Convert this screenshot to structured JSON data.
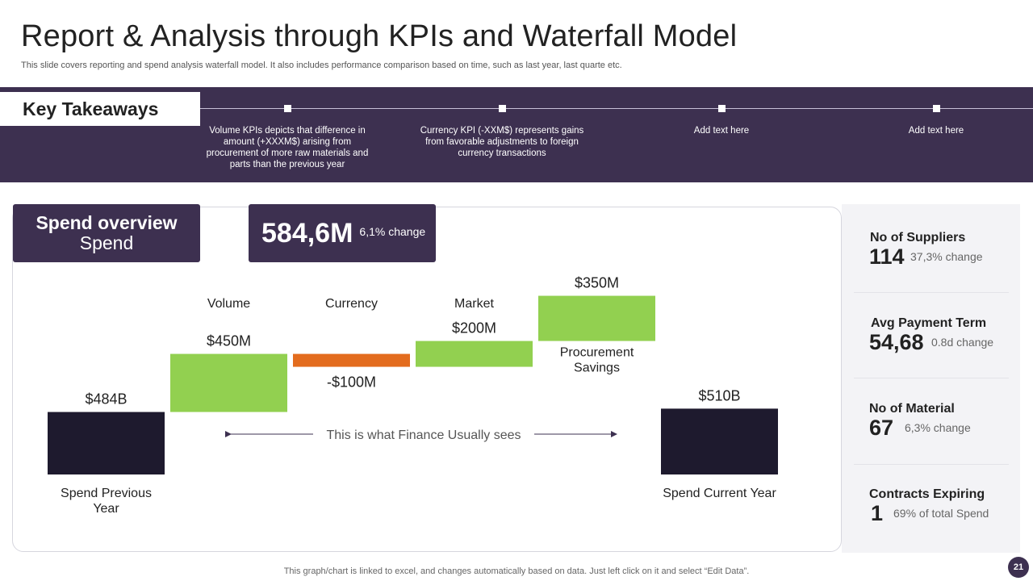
{
  "header": {
    "title": "Report & Analysis through KPIs and Waterfall Model",
    "subtitle": "This slide covers reporting and spend analysis waterfall model. It also includes performance comparison based on time, such as last year, last quarte etc."
  },
  "takeaways": {
    "heading": "Key Takeaways",
    "items": [
      "Volume KPIs depicts that difference in amount (+XXXM$)  arising from procurement of more raw materials and parts than the previous year",
      "Currency KPI (-XXM$)  represents gains from favorable adjustments to foreign currency transactions",
      "Add text here",
      "Add text here"
    ]
  },
  "spend_overview": {
    "title": "Spend overview",
    "subtitle": "Spend",
    "big_value": "584,6M",
    "change": "6,1% change"
  },
  "chart_data": {
    "type": "bar",
    "subtype": "waterfall",
    "categories": [
      "Spend Previous Year",
      "Volume",
      "Currency",
      "Market",
      "Procurement Savings",
      "Spend Current Year"
    ],
    "values": [
      484,
      450,
      -100,
      200,
      350,
      510
    ],
    "value_labels": [
      "$484B",
      "$450M",
      "-$100M",
      "$200M",
      "$350M",
      "$510B"
    ],
    "top_labels": [
      "",
      "Volume",
      "Currency",
      "Market",
      "",
      ""
    ],
    "bottom_labels": [
      "Spend Previous Year",
      "",
      "",
      "",
      "Procurement Savings",
      "Spend Current Year"
    ],
    "annotation": "This is what Finance Usually sees",
    "colors": {
      "total": "#1e1a2e",
      "increase": "#92d050",
      "decrease": "#e36c1e"
    }
  },
  "kpis": [
    {
      "title": "No of Suppliers",
      "value": "114",
      "change": "37,3% change"
    },
    {
      "title": "Avg Payment Term",
      "value": "54,68",
      "change": "0.8d change"
    },
    {
      "title": "No of Material",
      "value": "67",
      "change": "6,3% change"
    },
    {
      "title": "Contracts Expiring",
      "value": "1",
      "change": "69% of total Spend"
    }
  ],
  "footer": {
    "note": "This graph/chart is linked to excel,  and changes automatically based on data. Just left click on it and select “Edit Data”.",
    "page": "21"
  },
  "colors": {
    "primary": "#3d3050",
    "accent_orange": "#e36c1e",
    "accent_green": "#92d050"
  }
}
